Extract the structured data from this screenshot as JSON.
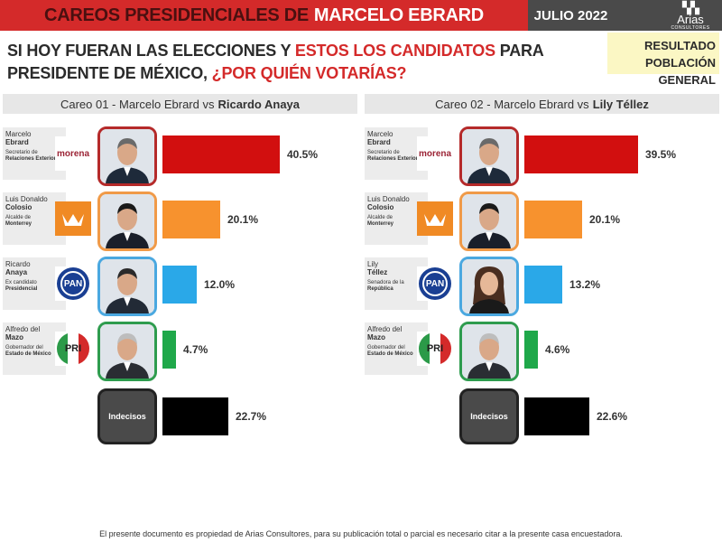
{
  "header": {
    "title_part1": "CAREOS PRESIDENCIALES DE",
    "title_part2": "MARCELO EBRARD",
    "date": "JULIO 2022",
    "logo_mark": "▚▚",
    "logo_name": "Arias",
    "logo_sub": "CONSULTORES"
  },
  "question": {
    "part1": "SI HOY FUERAN LAS ELECCIONES Y",
    "part2": "ESTOS LOS CANDIDATOS",
    "part3": "PARA",
    "part4": "PRESIDENTE DE MÉXICO,",
    "part5": "¿POR QUIÉN VOTARÍAS?"
  },
  "result_box": {
    "line1": "RESULTADO",
    "line2": "POBLACIÓN GENERAL"
  },
  "chart_data": [
    {
      "type": "bar",
      "title_prefix": "Careo 01 - Marcelo Ebrard vs",
      "title_bold": "Ricardo Anaya",
      "categories": [
        "Marcelo Ebrard",
        "Luis Donaldo Colosio",
        "Ricardo Anaya",
        "Alfredo del Mazo",
        "Indecisos"
      ],
      "values": [
        40.5,
        20.1,
        12.0,
        4.7,
        22.7
      ],
      "labels": [
        "40.5%",
        "20.1%",
        "12.0%",
        "4.7%",
        "22.7%"
      ],
      "colors": [
        "#d20f0f",
        "#f7922e",
        "#2aa8e8",
        "#1fa84a",
        "#000000"
      ],
      "candidates": [
        {
          "name": "Marcelo",
          "surname": "Ebrard",
          "role_a": "Secretario de",
          "role_b": "Relaciones Exteriores",
          "party": "morena"
        },
        {
          "name": "Luis Donaldo",
          "surname": "Colosio",
          "role_a": "Alcalde de",
          "role_b": "Monterrey",
          "party": "MC"
        },
        {
          "name": "Ricardo",
          "surname": "Anaya",
          "role_a": "Ex candidato",
          "role_b": "Presidencial",
          "party": "PAN"
        },
        {
          "name": "Alfredo del",
          "surname": "Mazo",
          "role_a": "Gobernador del",
          "role_b": "Estado de México",
          "party": "PRI"
        }
      ],
      "undecided_label": "Indecisos"
    },
    {
      "type": "bar",
      "title_prefix": "Careo 02 - Marcelo Ebrard vs",
      "title_bold": "Lily Téllez",
      "categories": [
        "Marcelo Ebrard",
        "Luis Donaldo Colosio",
        "Lily Téllez",
        "Alfredo del Mazo",
        "Indecisos"
      ],
      "values": [
        39.5,
        20.1,
        13.2,
        4.6,
        22.6
      ],
      "labels": [
        "39.5%",
        "20.1%",
        "13.2%",
        "4.6%",
        "22.6%"
      ],
      "colors": [
        "#d20f0f",
        "#f7922e",
        "#2aa8e8",
        "#1fa84a",
        "#000000"
      ],
      "candidates": [
        {
          "name": "Marcelo",
          "surname": "Ebrard",
          "role_a": "Secretario de",
          "role_b": "Relaciones Exteriores",
          "party": "morena"
        },
        {
          "name": "Luis Donaldo",
          "surname": "Colosio",
          "role_a": "Alcalde de",
          "role_b": "Monterrey",
          "party": "MC"
        },
        {
          "name": "Lily",
          "surname": "Téllez",
          "role_a": "Senadora de la",
          "role_b": "República",
          "party": "PAN"
        },
        {
          "name": "Alfredo del",
          "surname": "Mazo",
          "role_a": "Gobernador del",
          "role_b": "Estado de México",
          "party": "PRI"
        }
      ],
      "undecided_label": "Indecisos"
    }
  ],
  "footer": {
    "text": "El presente documento es propiedad de Arias Consultores, para su publicación total o parcial es necesario citar a la presente casa encuestadora."
  },
  "colors": {
    "brand_red": "#d42a2a",
    "header_gray": "#4a4a4a",
    "result_box": "#fbf7c4"
  }
}
